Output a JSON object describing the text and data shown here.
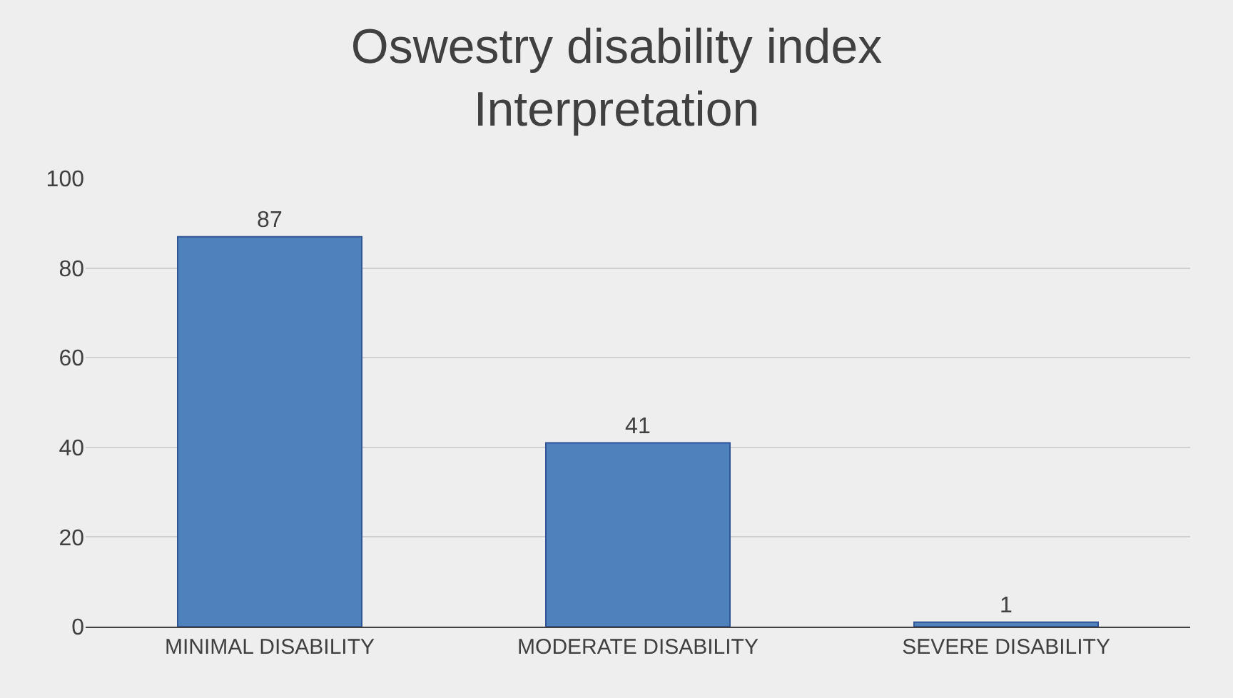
{
  "chart_data": {
    "type": "bar",
    "title": "Oswestry disability index\nInterpretation",
    "categories": [
      "MINIMAL DISABILITY",
      "MODERATE DISABILITY",
      "SEVERE DISABILITY"
    ],
    "values": [
      87,
      41,
      1
    ],
    "color": "#4f81bd",
    "ylim": [
      0,
      100
    ],
    "yticks": [
      0,
      20,
      40,
      60,
      80,
      100
    ],
    "grid": "y",
    "data_labels": true
  }
}
